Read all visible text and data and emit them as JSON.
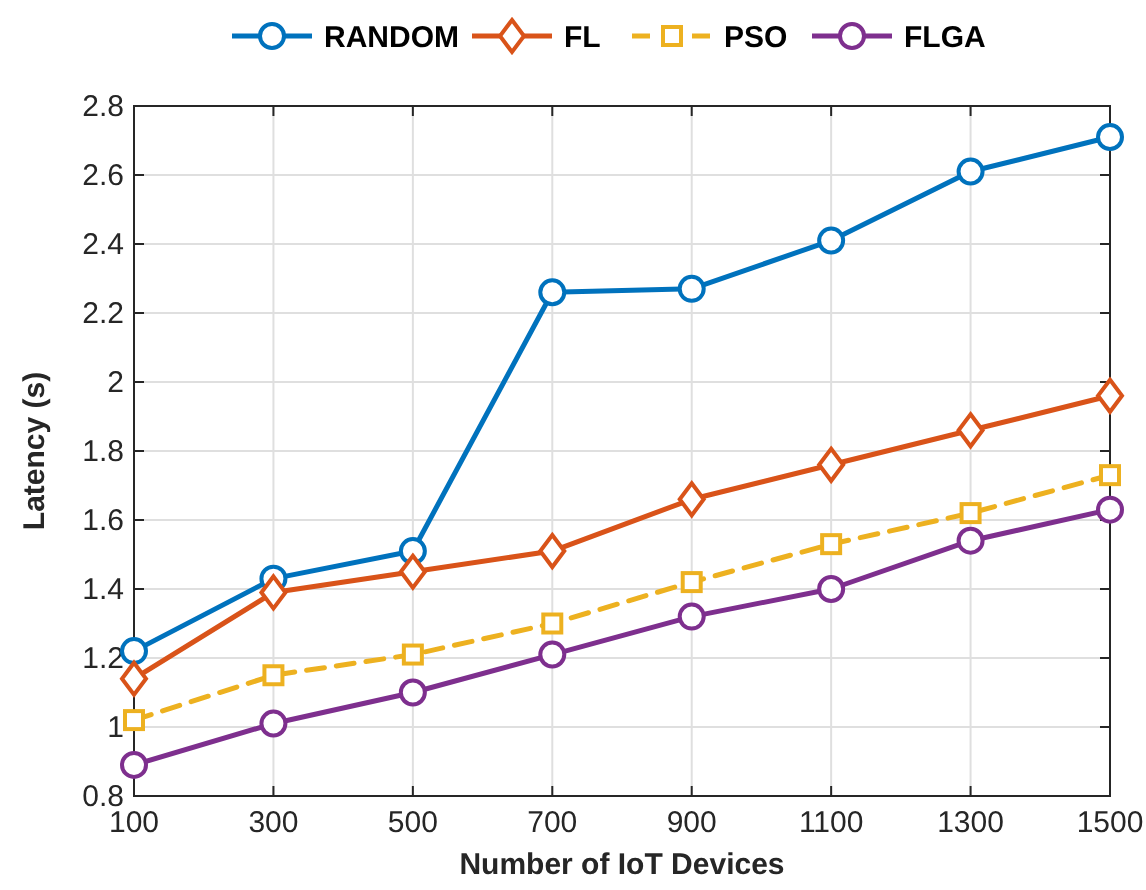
{
  "chart_data": {
    "type": "line",
    "xlabel": "Number of IoT Devices",
    "ylabel": "Latency (s)",
    "x": [
      100,
      300,
      500,
      700,
      900,
      1100,
      1300,
      1500
    ],
    "series": [
      {
        "name": "RANDOM",
        "color": "#0072bd",
        "marker": "circle",
        "line_style": "solid",
        "values": [
          1.22,
          1.43,
          1.51,
          2.26,
          2.27,
          2.41,
          2.61,
          2.71
        ]
      },
      {
        "name": "FL",
        "color": "#d95319",
        "marker": "diamond",
        "line_style": "solid",
        "values": [
          1.14,
          1.39,
          1.45,
          1.51,
          1.66,
          1.76,
          1.86,
          1.96
        ]
      },
      {
        "name": "PSO",
        "color": "#edb120",
        "marker": "square",
        "line_style": "dashed",
        "values": [
          1.02,
          1.15,
          1.21,
          1.3,
          1.42,
          1.53,
          1.62,
          1.73
        ]
      },
      {
        "name": "FLGA",
        "color": "#7e2f8e",
        "marker": "circle",
        "line_style": "solid",
        "values": [
          0.89,
          1.01,
          1.1,
          1.21,
          1.32,
          1.4,
          1.54,
          1.63
        ]
      }
    ],
    "xlim": [
      100,
      1500
    ],
    "xticks": [
      100,
      300,
      500,
      700,
      900,
      1100,
      1300,
      1500
    ],
    "ylim": [
      0.8,
      2.8
    ],
    "yticks": [
      0.8,
      1,
      1.2,
      1.4,
      1.6,
      1.8,
      2,
      2.2,
      2.4,
      2.6,
      2.8
    ],
    "grid": true,
    "legend": "top"
  }
}
